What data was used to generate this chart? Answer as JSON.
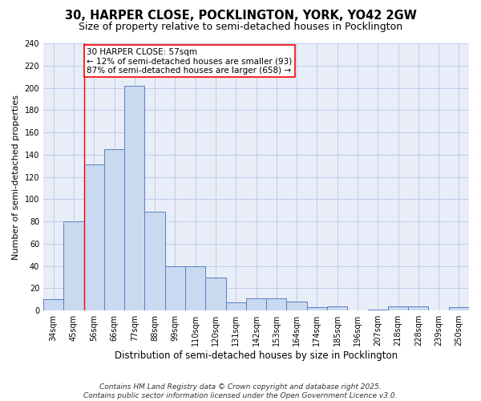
{
  "title": "30, HARPER CLOSE, POCKLINGTON, YORK, YO42 2GW",
  "subtitle": "Size of property relative to semi-detached houses in Pocklington",
  "xlabel": "Distribution of semi-detached houses by size in Pocklington",
  "ylabel": "Number of semi-detached properties",
  "categories": [
    "34sqm",
    "45sqm",
    "56sqm",
    "66sqm",
    "77sqm",
    "88sqm",
    "99sqm",
    "110sqm",
    "120sqm",
    "131sqm",
    "142sqm",
    "153sqm",
    "164sqm",
    "174sqm",
    "185sqm",
    "196sqm",
    "207sqm",
    "218sqm",
    "228sqm",
    "239sqm",
    "250sqm"
  ],
  "values": [
    10,
    80,
    131,
    145,
    202,
    89,
    40,
    40,
    30,
    7,
    11,
    11,
    8,
    3,
    4,
    0,
    1,
    4,
    4,
    0,
    3
  ],
  "bar_color": "#c9d9f0",
  "bar_edge_color": "#5a7fc0",
  "grid_color": "#b8c8e8",
  "background_color": "#e8edf8",
  "annotation_text": "30 HARPER CLOSE: 57sqm\n← 12% of semi-detached houses are smaller (93)\n87% of semi-detached houses are larger (658) →",
  "annotation_box_color": "white",
  "annotation_box_edge_color": "red",
  "redline_x": 1.5,
  "ylim": [
    0,
    240
  ],
  "yticks": [
    0,
    20,
    40,
    60,
    80,
    100,
    120,
    140,
    160,
    180,
    200,
    220,
    240
  ],
  "footnote": "Contains HM Land Registry data © Crown copyright and database right 2025.\nContains public sector information licensed under the Open Government Licence v3.0.",
  "title_fontsize": 10.5,
  "subtitle_fontsize": 9,
  "xlabel_fontsize": 8.5,
  "ylabel_fontsize": 8,
  "tick_fontsize": 7,
  "annotation_fontsize": 7.5,
  "footnote_fontsize": 6.5
}
